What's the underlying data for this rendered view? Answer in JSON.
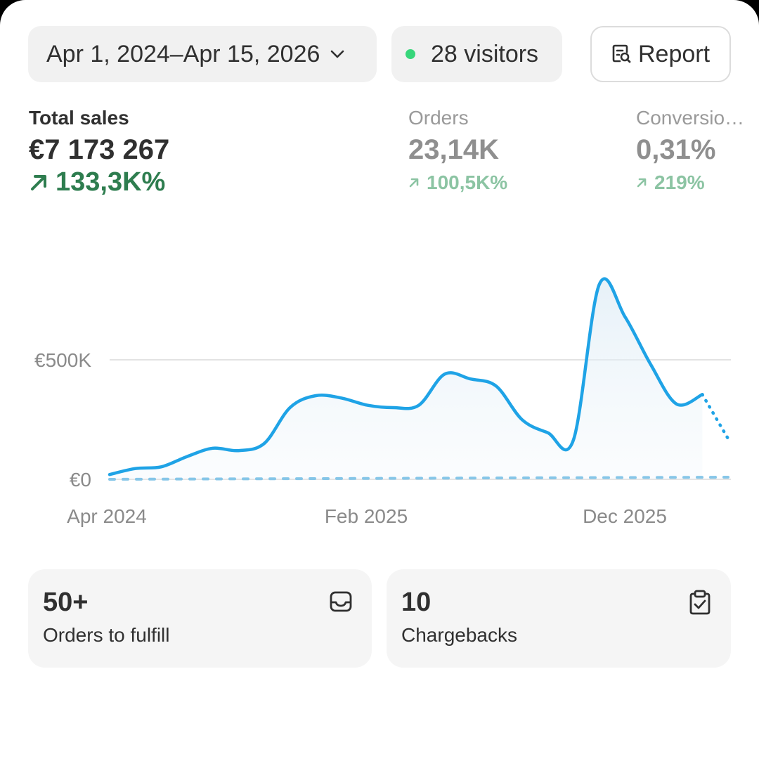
{
  "header": {
    "date_range": "Apr 1, 2024–Apr 15, 2026",
    "visitors": "28 visitors",
    "live_dot_color": "#37d67a",
    "report_label": "Report"
  },
  "metrics": {
    "total_sales": {
      "label": "Total sales",
      "value": "€7 173 267",
      "change": "133,3K%"
    },
    "orders": {
      "label": "Orders",
      "value": "23,14K",
      "change": "100,5K%"
    },
    "conversion": {
      "label": "Conversio…",
      "value": "0,31%",
      "change": "219%"
    }
  },
  "chart_data": {
    "type": "line",
    "x_tick_labels": [
      "Apr 2024",
      "Feb 2025",
      "Dec 2025"
    ],
    "y_tick_labels": [
      "€500K",
      "€0"
    ],
    "y_ticks": [
      500000,
      0
    ],
    "ylim": [
      0,
      1000000
    ],
    "grid": true,
    "line_color": "#1fa3e6",
    "series": [
      {
        "style": "solid",
        "values": [
          20000,
          45000,
          52000,
          95000,
          130000,
          120000,
          150000,
          300000,
          350000,
          340000,
          310000,
          300000,
          310000,
          440000,
          420000,
          390000,
          250000,
          195000,
          165000,
          815000,
          680000,
          480000,
          315000,
          355000
        ]
      },
      {
        "style": "dotted",
        "values": [
          355000,
          170000
        ]
      },
      {
        "style": "dashed-baseline",
        "values": [
          0,
          0
        ]
      }
    ]
  },
  "cards": [
    {
      "value": "50+",
      "label": "Orders to fulfill",
      "icon": "inbox-icon"
    },
    {
      "value": "10",
      "label": "Chargebacks",
      "icon": "clipboard-check-icon"
    }
  ]
}
